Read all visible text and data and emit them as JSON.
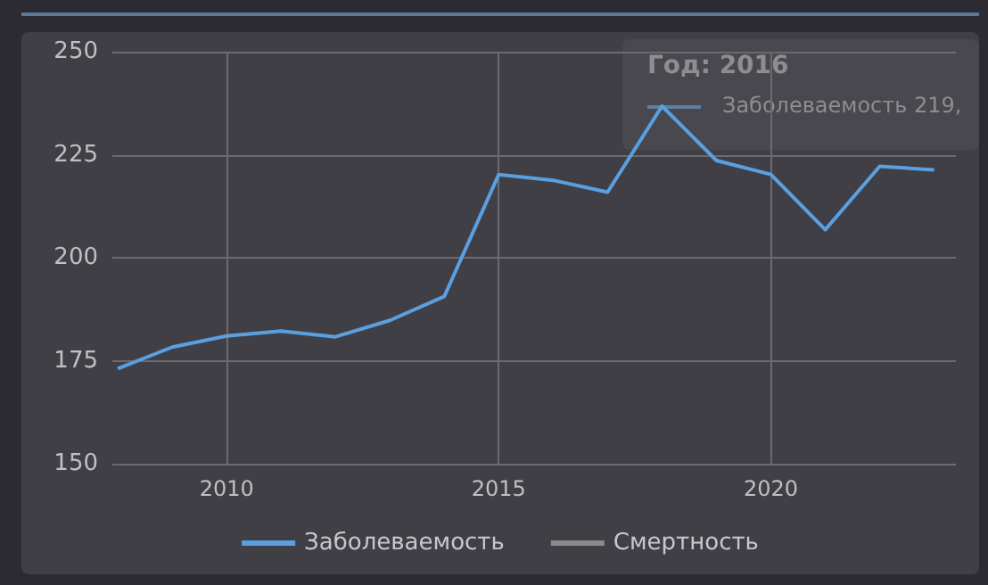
{
  "chart_data": {
    "type": "line",
    "x": [
      2008,
      2009,
      2010,
      2011,
      2012,
      2013,
      2014,
      2015,
      2016,
      2017,
      2018,
      2019,
      2020,
      2021,
      2022,
      2023
    ],
    "series": [
      {
        "name": "Заболеваемость",
        "color": "#5aa0e0",
        "values": [
          173.1,
          178.3,
          181.0,
          182.2,
          180.8,
          184.8,
          190.6,
          220.2,
          218.8,
          215.9,
          236.8,
          223.6,
          220.2,
          206.8,
          222.2,
          221.3
        ]
      },
      {
        "name": "Смертность",
        "color": "#8a8a8a",
        "values": [
          null,
          null,
          null,
          null,
          null,
          null,
          null,
          null,
          null,
          null,
          null,
          null,
          null,
          null,
          null,
          null
        ]
      }
    ],
    "xlim": [
      2007.9,
      2023.4
    ],
    "xticks": [
      2010,
      2015,
      2020
    ],
    "ylim": [
      150,
      250
    ],
    "yticks": [
      150,
      175,
      200,
      225,
      250
    ],
    "grid": true,
    "legend": "bottom",
    "marker": "none",
    "line_style": "solid",
    "annotations": [
      "Год: 2016",
      "Заболеваемость 219,"
    ]
  }
}
